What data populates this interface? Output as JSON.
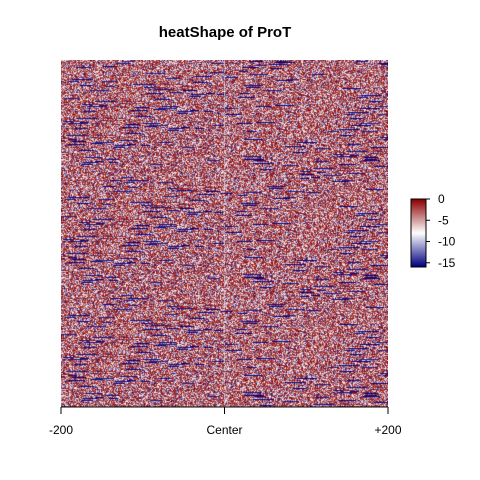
{
  "chart_data": {
    "type": "heatmap",
    "title": "heatShape of ProT",
    "xlabel": "",
    "ylabel": "",
    "x_ticks": [
      {
        "value": -200,
        "label": "-200"
      },
      {
        "value": 0,
        "label": "Center"
      },
      {
        "value": 200,
        "label": "+200"
      }
    ],
    "xlim": [
      -200,
      200
    ],
    "color_scale": {
      "min": -16,
      "max": 0,
      "ticks": [
        {
          "value": 0,
          "label": "0"
        },
        {
          "value": -5,
          "label": "-5"
        },
        {
          "value": -10,
          "label": "-10"
        },
        {
          "value": -15,
          "label": "-15"
        }
      ],
      "colors": [
        "#000080",
        "#ffffff",
        "#8b0000"
      ],
      "legend_position": "right"
    },
    "grid": false
  }
}
